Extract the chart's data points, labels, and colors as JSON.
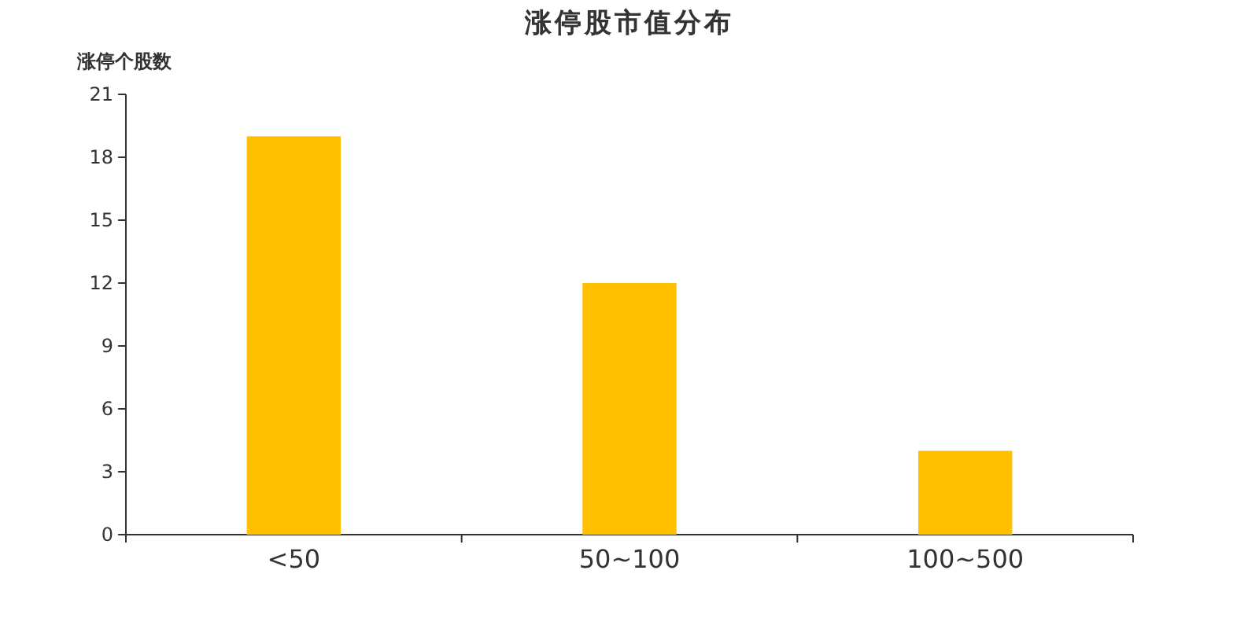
{
  "chart_data": {
    "type": "bar",
    "title": "涨停股市值分布",
    "ylabel": "涨停个股数",
    "categories": [
      "<50",
      "50~100",
      "100~500"
    ],
    "values": [
      19,
      12,
      4
    ],
    "color": "#ffc000",
    "ylim": [
      0,
      21
    ],
    "yticks": [
      0,
      3,
      6,
      9,
      12,
      15,
      18,
      21
    ],
    "grid": false
  }
}
